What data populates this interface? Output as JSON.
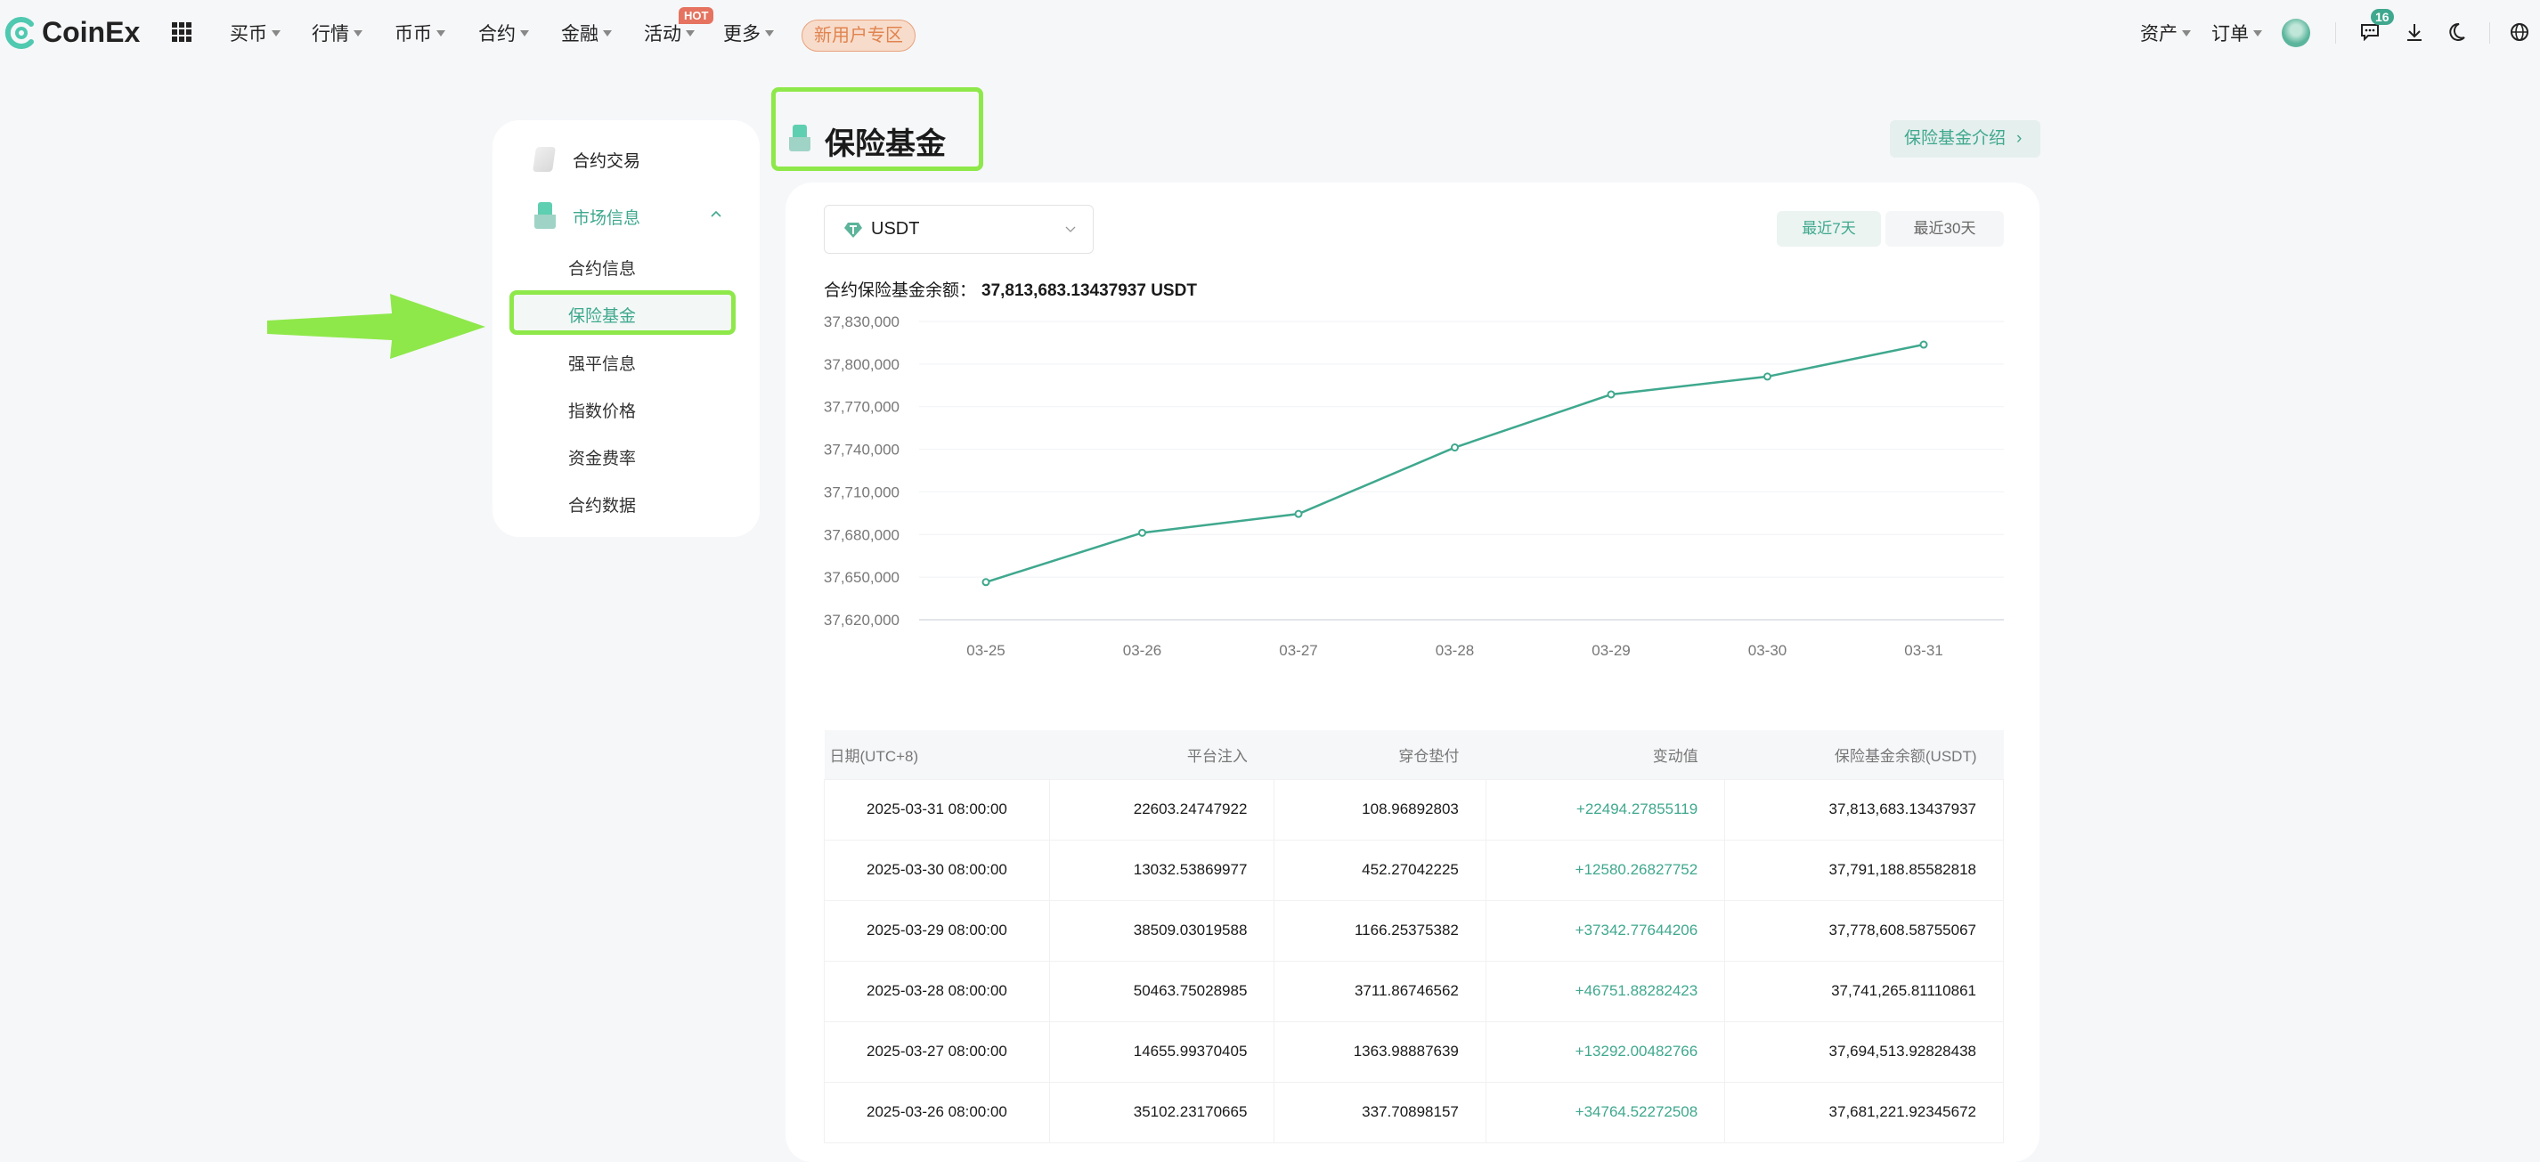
{
  "header": {
    "logo": "CoinEx",
    "nav": [
      {
        "label": "买币"
      },
      {
        "label": "行情"
      },
      {
        "label": "币币"
      },
      {
        "label": "合约"
      },
      {
        "label": "金融"
      },
      {
        "label": "活动"
      },
      {
        "label": "更多"
      }
    ],
    "hot_badge": "HOT",
    "promo": "新用户专区",
    "assets": "资产",
    "orders": "订单",
    "message_count": "16"
  },
  "sidebar": {
    "top_item": "合约交易",
    "group": "市场信息",
    "items": [
      {
        "label": "合约信息"
      },
      {
        "label": "保险基金"
      },
      {
        "label": "强平信息"
      },
      {
        "label": "指数价格"
      },
      {
        "label": "资金费率"
      },
      {
        "label": "合约数据"
      }
    ],
    "active_index": 1
  },
  "page": {
    "title": "保险基金",
    "intro_link": "保险基金介绍",
    "coin": "USDT",
    "tabs": [
      {
        "label": "最近7天",
        "active": true
      },
      {
        "label": "最近30天",
        "active": false
      }
    ],
    "balance_label": "合约保险基金余额：",
    "balance_value": "37,813,683.13437937 USDT"
  },
  "colors": {
    "accent": "#3fa88e",
    "annotation": "#8ee84a"
  },
  "chart_data": {
    "type": "line",
    "categories": [
      "03-25",
      "03-26",
      "03-27",
      "03-28",
      "03-29",
      "03-30",
      "03-31"
    ],
    "values": [
      37646457.4,
      37681221.92,
      37694513.93,
      37741265.81,
      37778608.59,
      37791188.86,
      37813683.13
    ],
    "yticks": [
      "37,620,000",
      "37,650,000",
      "37,680,000",
      "37,710,000",
      "37,740,000",
      "37,770,000",
      "37,800,000",
      "37,830,000"
    ],
    "ylim": [
      37620000,
      37830000
    ],
    "grid": true
  },
  "table": {
    "headers": [
      "日期(UTC+8)",
      "平台注入",
      "穿仓垫付",
      "变动值",
      "保险基金余额(USDT)"
    ],
    "rows": [
      [
        "2025-03-31 08:00:00",
        "22603.24747922",
        "108.96892803",
        "+22494.27855119",
        "37,813,683.13437937"
      ],
      [
        "2025-03-30 08:00:00",
        "13032.53869977",
        "452.27042225",
        "+12580.26827752",
        "37,791,188.85582818"
      ],
      [
        "2025-03-29 08:00:00",
        "38509.03019588",
        "1166.25375382",
        "+37342.77644206",
        "37,778,608.58755067"
      ],
      [
        "2025-03-28 08:00:00",
        "50463.75028985",
        "3711.86746562",
        "+46751.88282423",
        "37,741,265.81110861"
      ],
      [
        "2025-03-27 08:00:00",
        "14655.99370405",
        "1363.98887639",
        "+13292.00482766",
        "37,694,513.92828438"
      ],
      [
        "2025-03-26 08:00:00",
        "35102.23170665",
        "337.70898157",
        "+34764.52272508",
        "37,681,221.92345672"
      ]
    ]
  }
}
